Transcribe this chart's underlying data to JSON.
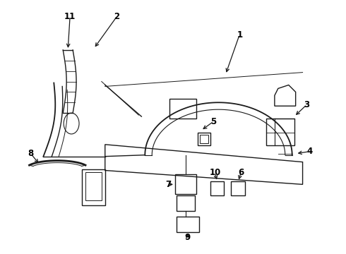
{
  "background_color": "#ffffff",
  "line_color": "#1a1a1a",
  "label_color": "#000000",
  "figsize": [
    4.9,
    3.6
  ],
  "dpi": 100,
  "label_fontsize": 8.5
}
